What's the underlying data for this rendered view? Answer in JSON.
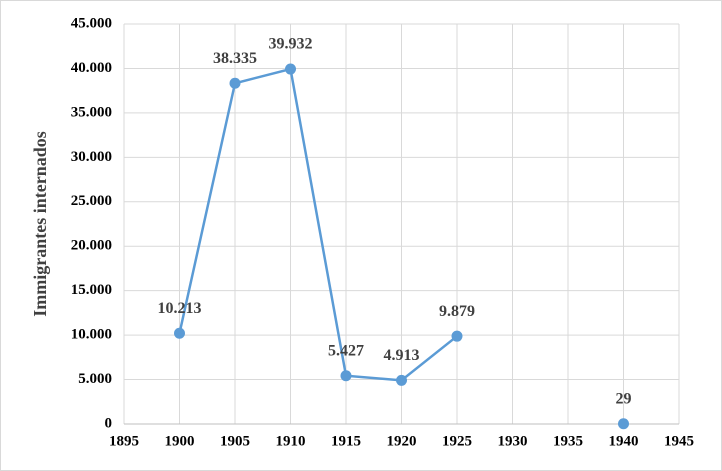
{
  "chart_data": {
    "type": "line",
    "y_label": "Immigrantes internados",
    "x": [
      1900,
      1905,
      1910,
      1915,
      1920,
      1925,
      1930,
      1935,
      1940
    ],
    "series": [
      {
        "name": "Immigrantes internados",
        "color": "#5b9bd5",
        "values": [
          10213,
          38335,
          39932,
          5427,
          4913,
          9879,
          null,
          null,
          29
        ],
        "value_labels": [
          "10.213",
          "38.335",
          "39.932",
          "5.427",
          "4.913",
          "9.879",
          null,
          null,
          "29"
        ]
      }
    ],
    "xlim": [
      1895,
      1945
    ],
    "xticks": [
      1895,
      1900,
      1905,
      1910,
      1915,
      1920,
      1925,
      1930,
      1935,
      1940,
      1945
    ],
    "ylim": [
      0,
      45000
    ],
    "yticks": [
      0,
      {
        "value": 5000,
        "label": "5.000"
      },
      {
        "value": 10000,
        "label": "10.000"
      },
      {
        "value": 15000,
        "label": "15.000"
      },
      {
        "value": 20000,
        "label": "20.000"
      },
      {
        "value": 25000,
        "label": "25.000"
      },
      {
        "value": 30000,
        "label": "30.000"
      },
      {
        "value": 35000,
        "label": "35.000"
      },
      {
        "value": 40000,
        "label": "40.000"
      },
      {
        "value": 45000,
        "label": "45.000"
      }
    ],
    "grid": true
  }
}
